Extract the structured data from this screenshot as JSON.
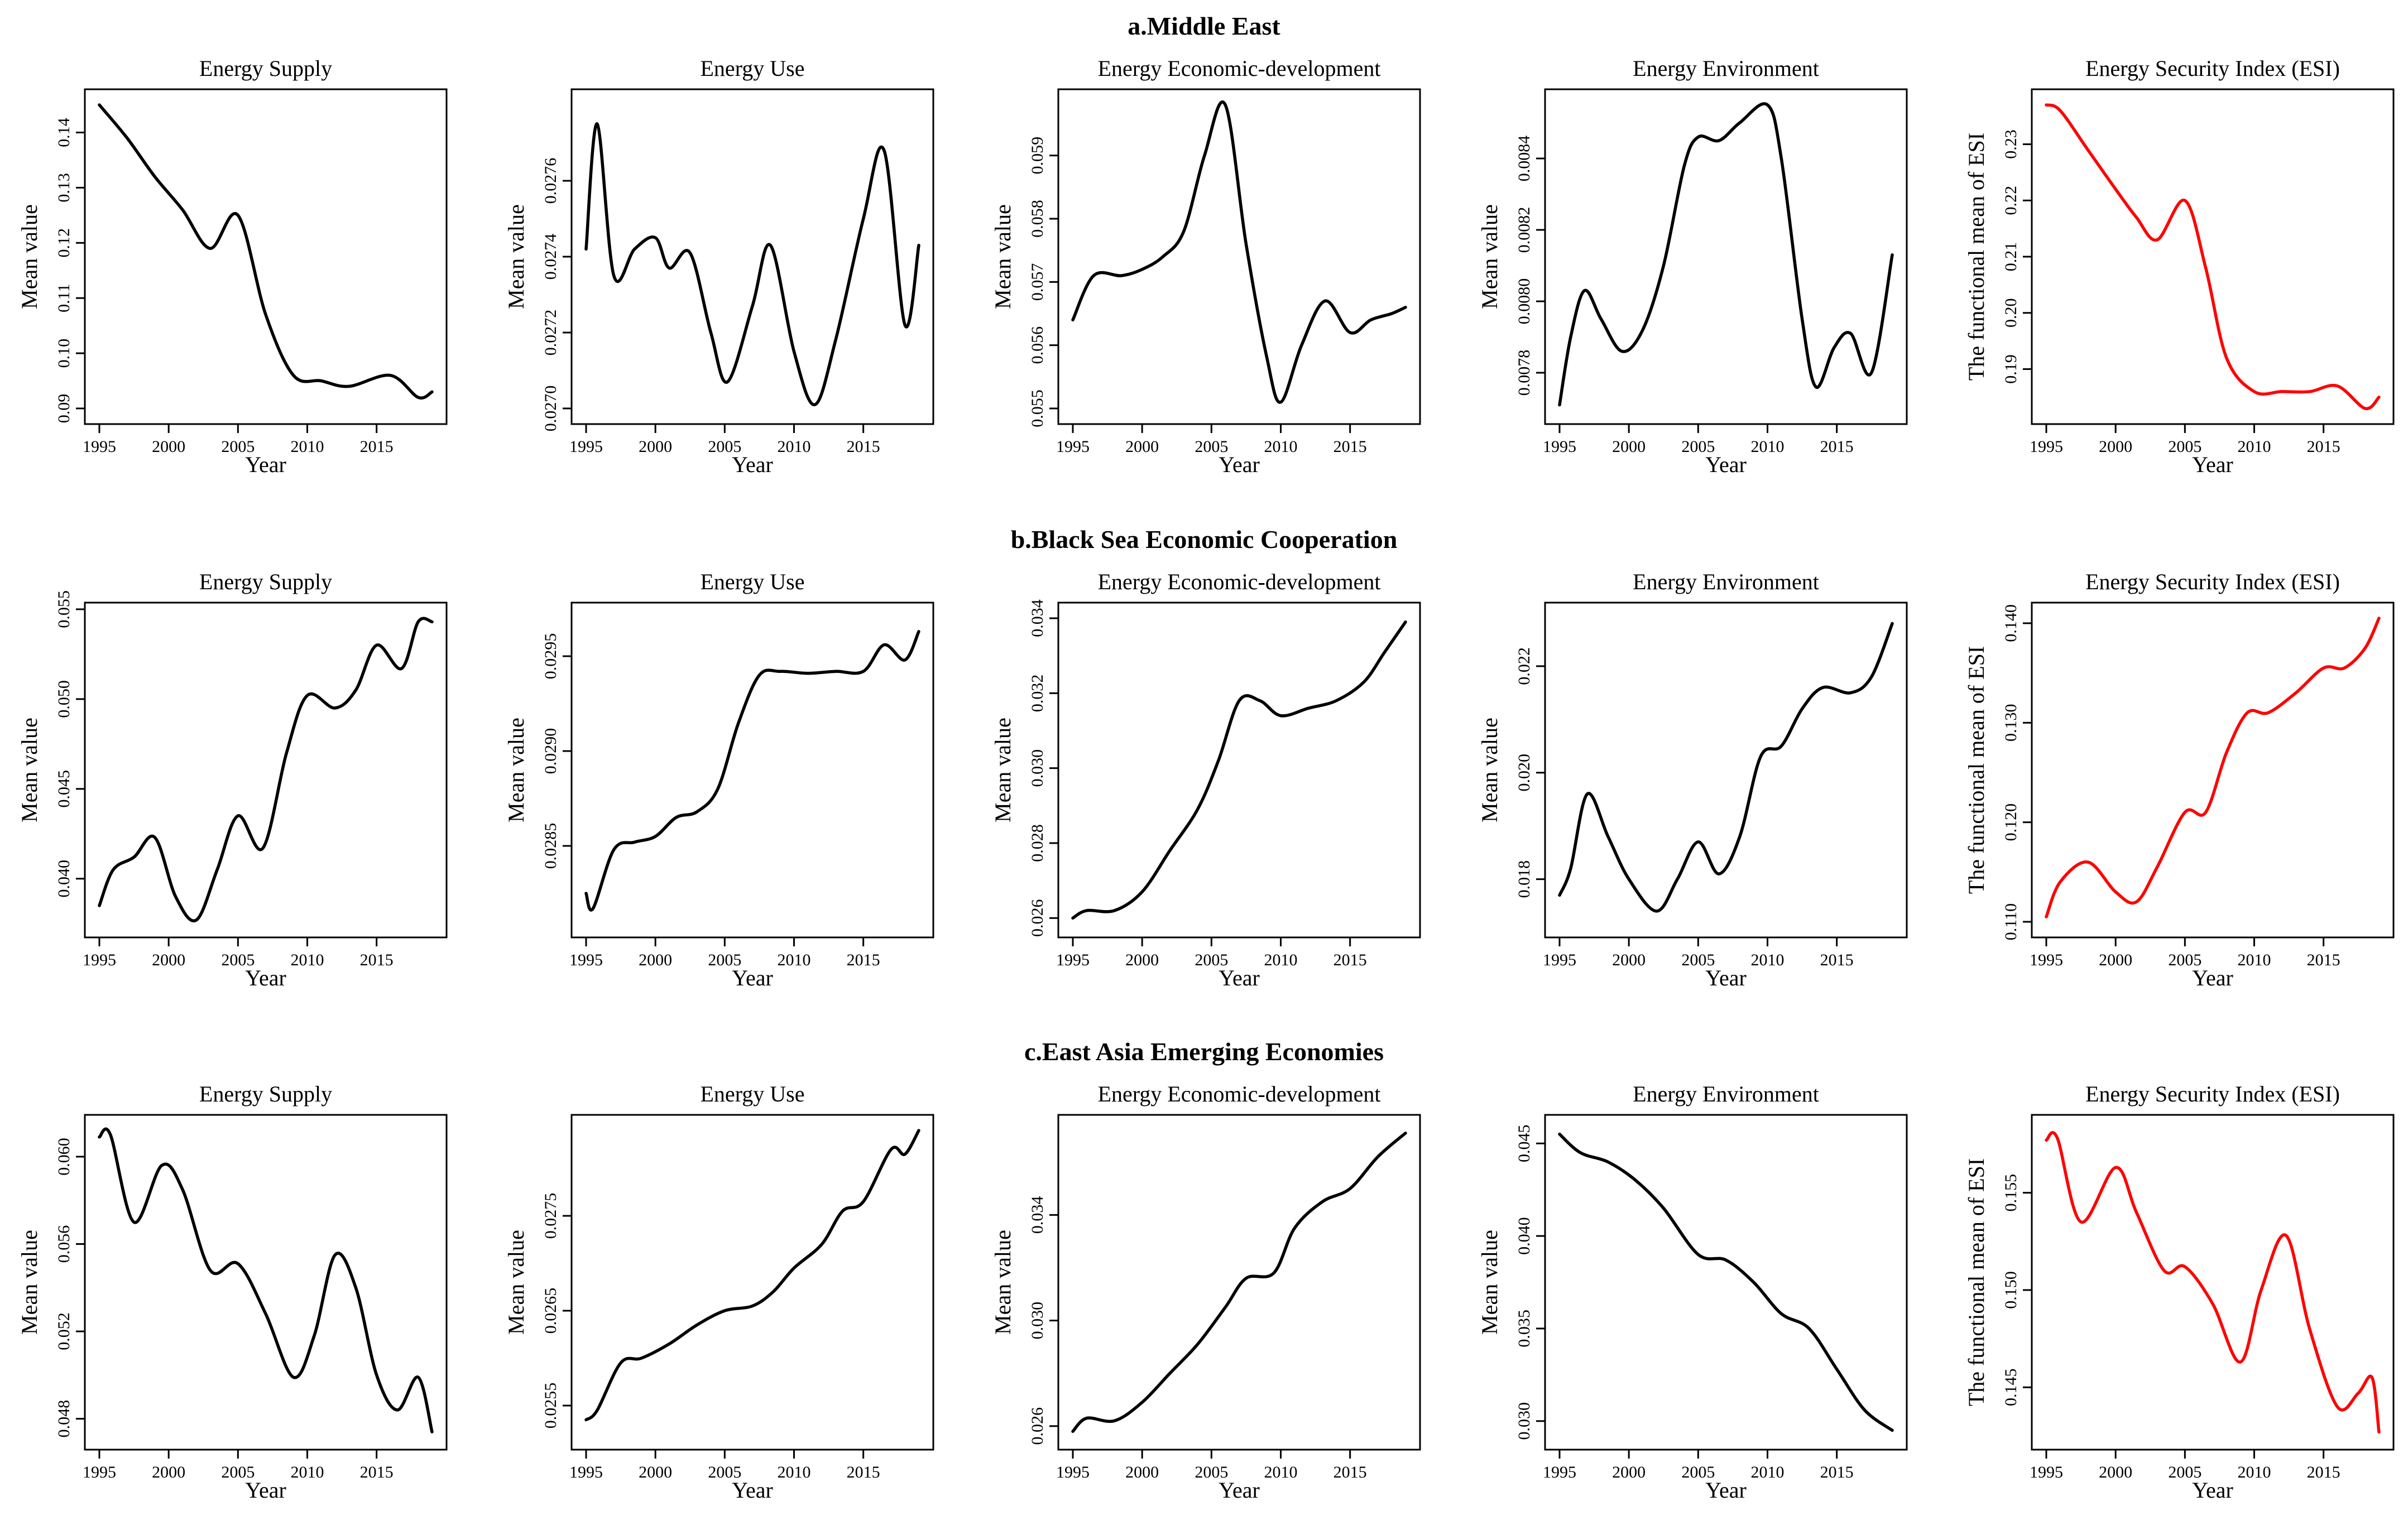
{
  "figure": {
    "rows": [
      {
        "title": "a.Middle East"
      },
      {
        "title": "b.Black Sea Economic Cooperation"
      },
      {
        "title": "c.East Asia Emerging Economies"
      }
    ]
  },
  "colors": {
    "indicator_line": "#000000",
    "esi_line": "#ff0000",
    "axis": "#000000"
  },
  "chart_data": [
    {
      "type": "line",
      "group": "a.Middle East",
      "title": "Energy Supply",
      "xlabel": "Year",
      "ylabel": "Mean value",
      "xlim": [
        1995,
        2019
      ],
      "ylim": [
        0.09,
        0.145
      ],
      "xticks": [
        1995,
        2000,
        2005,
        2010,
        2015
      ],
      "yticks": [
        "0.09",
        "0.10",
        "0.11",
        "0.12",
        "0.13",
        "0.14"
      ],
      "color": "#000000",
      "x": [
        1995,
        1997,
        1999,
        2001,
        2003,
        2005,
        2007,
        2009,
        2011,
        2013,
        2016,
        2018,
        2019
      ],
      "y": [
        0.145,
        0.139,
        0.132,
        0.126,
        0.119,
        0.125,
        0.107,
        0.096,
        0.095,
        0.094,
        0.096,
        0.092,
        0.093
      ]
    },
    {
      "type": "line",
      "group": "a.Middle East",
      "title": "Energy Use",
      "xlabel": "Year",
      "ylabel": "Mean value",
      "xlim": [
        1995,
        2019
      ],
      "ylim": [
        0.027,
        0.0278
      ],
      "xticks": [
        1995,
        2000,
        2005,
        2010,
        2015
      ],
      "yticks": [
        "0.0270",
        "0.0272",
        "0.0274",
        "0.0276"
      ],
      "color": "#000000",
      "x": [
        1995,
        1995.8,
        1997,
        1998.5,
        2000,
        2001,
        2002.5,
        2004,
        2005.2,
        2007,
        2008.3,
        2010,
        2011.5,
        2013,
        2015,
        2016.5,
        2018,
        2019
      ],
      "y": [
        0.02742,
        0.02775,
        0.02735,
        0.02742,
        0.02745,
        0.02737,
        0.02741,
        0.0272,
        0.02707,
        0.02727,
        0.02743,
        0.02715,
        0.02701,
        0.02718,
        0.0275,
        0.02768,
        0.02722,
        0.02743
      ]
    },
    {
      "type": "line",
      "group": "a.Middle East",
      "title": "Energy Economic-development",
      "xlabel": "Year",
      "ylabel": "Mean value",
      "xlim": [
        1995,
        2019
      ],
      "ylim": [
        0.055,
        0.0598
      ],
      "xticks": [
        1995,
        2000,
        2005,
        2010,
        2015
      ],
      "yticks": [
        "0.055",
        "0.056",
        "0.057",
        "0.058",
        "0.059"
      ],
      "color": "#000000",
      "x": [
        1995,
        1996.5,
        1998.5,
        2000,
        2001.5,
        2003,
        2004.5,
        2006,
        2007.5,
        2009,
        2010,
        2011.5,
        2013.2,
        2015,
        2016.5,
        2018,
        2019
      ],
      "y": [
        0.0564,
        0.0571,
        0.0571,
        0.0572,
        0.0574,
        0.0578,
        0.059,
        0.0598,
        0.0576,
        0.0558,
        0.0551,
        0.056,
        0.0567,
        0.0562,
        0.0564,
        0.0565,
        0.0566
      ]
    },
    {
      "type": "line",
      "group": "a.Middle East",
      "title": "Energy Environment",
      "xlabel": "Year",
      "ylabel": "Mean value",
      "xlim": [
        1995,
        2019
      ],
      "ylim": [
        0.0077,
        0.00855
      ],
      "xticks": [
        1995,
        2000,
        2005,
        2010,
        2015
      ],
      "yticks": [
        "0.0078",
        "0.0080",
        "0.0082",
        "0.0084"
      ],
      "color": "#000000",
      "x": [
        1995,
        1995.8,
        1996.8,
        1998,
        1999.5,
        2001,
        2002.5,
        2004,
        2005,
        2006.5,
        2008,
        2010,
        2011,
        2012.5,
        2013.5,
        2014.8,
        2016,
        2017.5,
        2019
      ],
      "y": [
        0.00771,
        0.0079,
        0.00803,
        0.00795,
        0.00786,
        0.00792,
        0.0081,
        0.00838,
        0.00846,
        0.00845,
        0.0085,
        0.00855,
        0.0084,
        0.00795,
        0.00776,
        0.00787,
        0.00791,
        0.0078,
        0.00813
      ]
    },
    {
      "type": "line",
      "group": "a.Middle East",
      "title": "Energy Security Index (ESI)",
      "xlabel": "Year",
      "ylabel": "The functional mean of ESI",
      "xlim": [
        1995,
        2019
      ],
      "ylim": [
        0.183,
        0.237
      ],
      "xticks": [
        1995,
        2000,
        2005,
        2010,
        2015
      ],
      "yticks": [
        "0.19",
        "0.20",
        "0.21",
        "0.22",
        "0.23"
      ],
      "color": "#ff0000",
      "x": [
        1995,
        1996,
        1998,
        2000,
        2001.5,
        2003,
        2005,
        2006.5,
        2008,
        2010,
        2012,
        2014,
        2016,
        2018,
        2019
      ],
      "y": [
        0.237,
        0.236,
        0.229,
        0.222,
        0.217,
        0.213,
        0.22,
        0.208,
        0.192,
        0.186,
        0.186,
        0.186,
        0.187,
        0.183,
        0.185
      ]
    },
    {
      "type": "line",
      "group": "b.Black Sea Economic Cooperation",
      "title": "Energy Supply",
      "xlabel": "Year",
      "ylabel": "Mean value",
      "xlim": [
        1995,
        2019
      ],
      "ylim": [
        0.0376,
        0.0545
      ],
      "xticks": [
        1995,
        2000,
        2005,
        2010,
        2015
      ],
      "yticks": [
        "0.040",
        "0.045",
        "0.050",
        "0.055"
      ],
      "color": "#000000",
      "x": [
        1995,
        1996,
        1997.5,
        1999,
        2000.5,
        2002,
        2003.5,
        2005,
        2006.8,
        2008.5,
        2010,
        2012,
        2013.5,
        2015,
        2016.8,
        2018,
        2019
      ],
      "y": [
        0.0385,
        0.0405,
        0.0412,
        0.0423,
        0.039,
        0.0377,
        0.0405,
        0.0435,
        0.0417,
        0.047,
        0.0502,
        0.0495,
        0.0505,
        0.053,
        0.0517,
        0.0543,
        0.0543
      ]
    },
    {
      "type": "line",
      "group": "b.Black Sea Economic Cooperation",
      "title": "Energy Use",
      "xlabel": "Year",
      "ylabel": "Mean value",
      "xlim": [
        1995,
        2019
      ],
      "ylim": [
        0.0281,
        0.0297
      ],
      "xticks": [
        1995,
        2000,
        2005,
        2010,
        2015
      ],
      "yticks": [
        "0.0285",
        "0.0290",
        "0.0295"
      ],
      "color": "#000000",
      "x": [
        1995,
        1995.5,
        1997,
        1998.5,
        2000,
        2001.5,
        2003,
        2004.5,
        2006,
        2007.5,
        2009,
        2011,
        2013,
        2015,
        2016.5,
        2018,
        2019
      ],
      "y": [
        0.02825,
        0.02817,
        0.02848,
        0.02852,
        0.02855,
        0.02865,
        0.02868,
        0.0288,
        0.02915,
        0.0294,
        0.02942,
        0.02941,
        0.02942,
        0.02942,
        0.02956,
        0.02948,
        0.02963
      ]
    },
    {
      "type": "line",
      "group": "b.Black Sea Economic Cooperation",
      "title": "Energy Economic-development",
      "xlabel": "Year",
      "ylabel": "Mean value",
      "xlim": [
        1995,
        2019
      ],
      "ylim": [
        0.0259,
        0.034
      ],
      "xticks": [
        1995,
        2000,
        2005,
        2010,
        2015
      ],
      "yticks": [
        "0.026",
        "0.028",
        "0.030",
        "0.032",
        "0.034"
      ],
      "color": "#000000",
      "x": [
        1995,
        1996,
        1998,
        2000,
        2002,
        2004,
        2005.5,
        2007,
        2008.5,
        2010,
        2012,
        2014,
        2016,
        2017.5,
        2019
      ],
      "y": [
        0.026,
        0.0262,
        0.0262,
        0.0267,
        0.0278,
        0.0289,
        0.0302,
        0.0318,
        0.0318,
        0.0314,
        0.0316,
        0.0318,
        0.0323,
        0.0331,
        0.0339
      ]
    },
    {
      "type": "line",
      "group": "b.Black Sea Economic Cooperation",
      "title": "Energy Environment",
      "xlabel": "Year",
      "ylabel": "Mean value",
      "xlim": [
        1995,
        2019
      ],
      "ylim": [
        0.0172,
        0.0229
      ],
      "xticks": [
        1995,
        2000,
        2005,
        2010,
        2015
      ],
      "yticks": [
        "0.018",
        "0.020",
        "0.022"
      ],
      "color": "#000000",
      "x": [
        1995,
        1995.8,
        1997,
        1998.5,
        2000,
        2002,
        2003.5,
        2005,
        2006.5,
        2008,
        2009.5,
        2011,
        2012.5,
        2014,
        2016,
        2017.5,
        2019
      ],
      "y": [
        0.0177,
        0.0182,
        0.0196,
        0.0188,
        0.018,
        0.0174,
        0.018,
        0.0187,
        0.0181,
        0.0188,
        0.0203,
        0.0205,
        0.0212,
        0.0216,
        0.0215,
        0.0218,
        0.0228
      ]
    },
    {
      "type": "line",
      "group": "b.Black Sea Economic Cooperation",
      "title": "Energy Security Index (ESI)",
      "xlabel": "Year",
      "ylabel": "The functional mean of ESI",
      "xlim": [
        1995,
        2019
      ],
      "ylim": [
        0.11,
        0.1405
      ],
      "xticks": [
        1995,
        2000,
        2005,
        2010,
        2015
      ],
      "yticks": [
        "0.110",
        "0.120",
        "0.130",
        "0.140"
      ],
      "color": "#ff0000",
      "x": [
        1995,
        1996,
        1998,
        2000,
        2001.5,
        2003,
        2005,
        2006.5,
        2008,
        2009.5,
        2011,
        2013,
        2015,
        2016.5,
        2018,
        2019
      ],
      "y": [
        0.1105,
        0.114,
        0.116,
        0.113,
        0.112,
        0.1155,
        0.121,
        0.121,
        0.127,
        0.131,
        0.131,
        0.133,
        0.1355,
        0.1355,
        0.1375,
        0.1405
      ]
    },
    {
      "type": "line",
      "group": "c.East Asia Emerging Economies",
      "title": "Energy Supply",
      "xlabel": "Year",
      "ylabel": "Mean value",
      "xlim": [
        1995,
        2019
      ],
      "ylim": [
        0.0473,
        0.0612
      ],
      "xticks": [
        1995,
        2000,
        2005,
        2010,
        2015
      ],
      "yticks": [
        "0.048",
        "0.052",
        "0.056",
        "0.060"
      ],
      "color": "#000000",
      "x": [
        1995,
        1995.8,
        1997.5,
        1999.5,
        2001,
        2003,
        2005,
        2007,
        2009,
        2010.5,
        2012,
        2013.5,
        2015,
        2016.5,
        2018,
        2019
      ],
      "y": [
        0.0609,
        0.061,
        0.057,
        0.0596,
        0.0585,
        0.0548,
        0.0551,
        0.0528,
        0.0499,
        0.0518,
        0.0555,
        0.054,
        0.05,
        0.0484,
        0.0499,
        0.0474
      ]
    },
    {
      "type": "line",
      "group": "c.East Asia Emerging Economies",
      "title": "Energy Use",
      "xlabel": "Year",
      "ylabel": "Mean value",
      "xlim": [
        1995,
        2019
      ],
      "ylim": [
        0.0252,
        0.0284
      ],
      "xticks": [
        1995,
        2000,
        2005,
        2010,
        2015
      ],
      "yticks": [
        "0.0255",
        "0.0265",
        "0.0275"
      ],
      "color": "#000000",
      "x": [
        1995,
        1995.8,
        1997.5,
        1999,
        2001,
        2003,
        2005,
        2007,
        2008.5,
        2010,
        2012,
        2013.5,
        2015,
        2017,
        2018,
        2019
      ],
      "y": [
        0.02535,
        0.02545,
        0.02595,
        0.026,
        0.02615,
        0.02635,
        0.0265,
        0.02655,
        0.0267,
        0.02695,
        0.0272,
        0.02755,
        0.02765,
        0.0282,
        0.02815,
        0.0284
      ]
    },
    {
      "type": "line",
      "group": "c.East Asia Emerging Economies",
      "title": "Energy Economic-development",
      "xlabel": "Year",
      "ylabel": "Mean value",
      "xlim": [
        1995,
        2019
      ],
      "ylim": [
        0.0257,
        0.0372
      ],
      "xticks": [
        1995,
        2000,
        2005,
        2010,
        2015
      ],
      "yticks": [
        "0.026",
        "0.030",
        "0.034"
      ],
      "color": "#000000",
      "x": [
        1995,
        1996,
        1998,
        2000,
        2002,
        2004,
        2006,
        2007.5,
        2009.5,
        2011,
        2013,
        2015,
        2017,
        2019
      ],
      "y": [
        0.0258,
        0.0263,
        0.0262,
        0.0269,
        0.028,
        0.0291,
        0.0305,
        0.0316,
        0.0318,
        0.0335,
        0.0345,
        0.035,
        0.0362,
        0.0371
      ]
    },
    {
      "type": "line",
      "group": "c.East Asia Emerging Economies",
      "title": "Energy Environment",
      "xlabel": "Year",
      "ylabel": "Mean value",
      "xlim": [
        1995,
        2019
      ],
      "ylim": [
        0.0293,
        0.0457
      ],
      "xticks": [
        1995,
        2000,
        2005,
        2010,
        2015
      ],
      "yticks": [
        "0.030",
        "0.035",
        "0.040",
        "0.045"
      ],
      "color": "#000000",
      "x": [
        1995,
        1996.5,
        1998.5,
        2000.5,
        2002.5,
        2005,
        2007,
        2009,
        2011,
        2013,
        2015,
        2017,
        2019
      ],
      "y": [
        0.0455,
        0.0445,
        0.044,
        0.043,
        0.0415,
        0.039,
        0.0387,
        0.0375,
        0.0358,
        0.035,
        0.0328,
        0.0306,
        0.0295
      ]
    },
    {
      "type": "line",
      "group": "c.East Asia Emerging Economies",
      "title": "Energy Security Index (ESI)",
      "xlabel": "Year",
      "ylabel": "The functional mean of ESI",
      "xlim": [
        1995,
        2019
      ],
      "ylim": [
        0.1426,
        0.1582
      ],
      "xticks": [
        1995,
        2000,
        2005,
        2010,
        2015
      ],
      "yticks": [
        "0.145",
        "0.150",
        "0.155"
      ],
      "color": "#ff0000",
      "x": [
        1995,
        1995.8,
        1997.5,
        2000,
        2001.5,
        2003.5,
        2005,
        2007,
        2009,
        2010.5,
        2012.3,
        2014,
        2016,
        2017.5,
        2018.5,
        2019
      ],
      "y": [
        0.1577,
        0.1578,
        0.1535,
        0.1563,
        0.154,
        0.151,
        0.1512,
        0.1493,
        0.1463,
        0.15,
        0.1528,
        0.148,
        0.144,
        0.1447,
        0.1455,
        0.1427
      ]
    }
  ]
}
